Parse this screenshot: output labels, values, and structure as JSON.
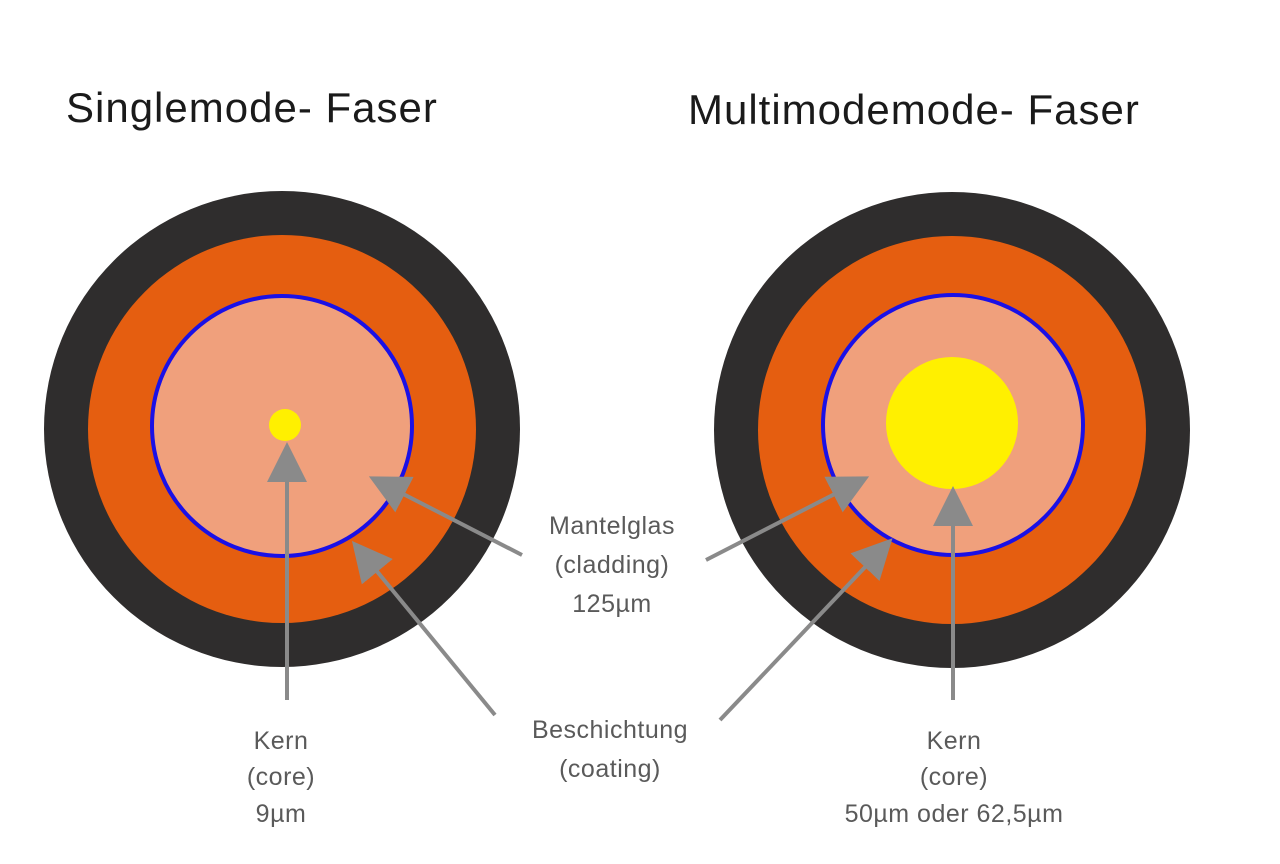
{
  "colors": {
    "jacket": "#2f2d2d",
    "buffer": "#e55e10",
    "cladding": "#f0a07c",
    "boundary": "#1a10e6",
    "core": "#fff000",
    "arrow": "#8a8a8a",
    "label_text": "#5a5a5a"
  },
  "singlemode": {
    "title": "Singlemode- Faser",
    "core_label": {
      "line1": "Kern",
      "line2": "(core)",
      "line3": "9µm"
    }
  },
  "multimode": {
    "title": "Multimodemode- Faser",
    "core_label": {
      "line1": "Kern",
      "line2": "(core)",
      "line3": "50µm oder 62,5µm"
    }
  },
  "cladding_label": {
    "line1": "Mantelglas",
    "line2": "(cladding)",
    "line3": "125µm"
  },
  "coating_label": {
    "line1": "Beschichtung",
    "line2": "(coating)"
  }
}
